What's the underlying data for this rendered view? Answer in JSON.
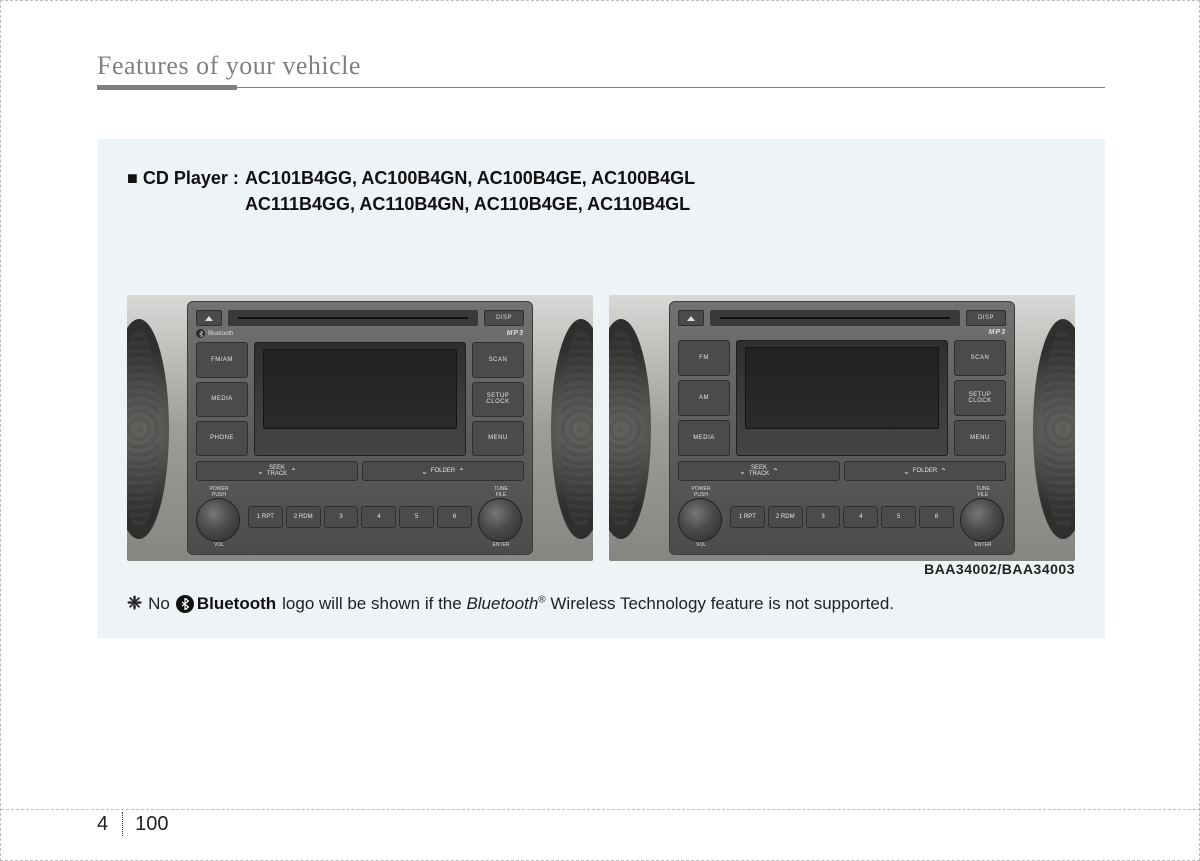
{
  "section_title": "Features of your vehicle",
  "box": {
    "heading_bullet": "■",
    "heading_label": "CD Player :",
    "models_line1": "AC101B4GG, AC100B4GN, AC100B4GE, AC100B4GL",
    "models_line2": "AC111B4GG, AC110B4GN, AC110B4GE, AC110B4GL"
  },
  "figures": {
    "codes": "BAA34002/BAA34003",
    "left": {
      "show_bluetooth_badge": true,
      "disp": "DISP",
      "mp3": "MP3",
      "left_buttons": [
        "FM/AM",
        "MEDIA",
        "PHONE"
      ],
      "right_buttons": [
        "SCAN",
        "SETUP\nCLOCK",
        "MENU"
      ],
      "seek": {
        "left_label": "SEEK\nTRACK",
        "right_label": "FOLDER"
      },
      "left_knob_top": "POWER\nPUSH",
      "left_knob_bottom": "VOL",
      "right_knob_top": "TUNE\nFILE",
      "right_knob_bottom": "ENTER",
      "presets": [
        "1 RPT",
        "2 RDM",
        "3",
        "4",
        "5",
        "6"
      ]
    },
    "right": {
      "show_bluetooth_badge": false,
      "disp": "DISP",
      "mp3": "MP3",
      "left_buttons": [
        "FM",
        "AM",
        "MEDIA"
      ],
      "right_buttons": [
        "SCAN",
        "SETUP\nCLOCK",
        "MENU"
      ],
      "seek": {
        "left_label": "SEEK\nTRACK",
        "right_label": "FOLDER"
      },
      "left_knob_top": "POWER\nPUSH",
      "left_knob_bottom": "VOL",
      "right_knob_top": "TUNE\nFILE",
      "right_knob_bottom": "ENTER",
      "presets": [
        "1 RPT",
        "2 RDM",
        "3",
        "4",
        "5",
        "6"
      ]
    }
  },
  "note": {
    "prefix_symbol": "❈",
    "word_no": "No",
    "bluetooth_word": "Bluetooth",
    "mid": " logo will be shown if the ",
    "bluetooth_italic": "Bluetooth",
    "reg": "®",
    "tail": " Wireless Technology feature is not supported."
  },
  "footer": {
    "section": "4",
    "page": "100"
  },
  "colors": {
    "box_bg": "#eef3f6",
    "title_gray": "#808080"
  }
}
